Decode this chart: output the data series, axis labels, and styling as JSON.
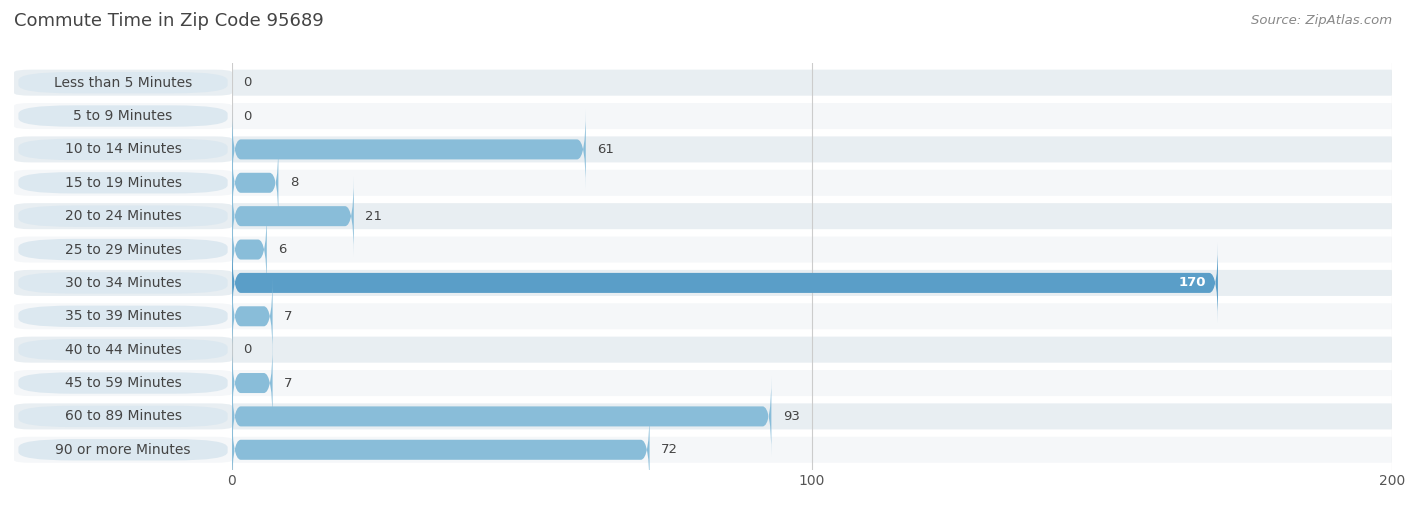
{
  "title": "Commute Time in Zip Code 95689",
  "source": "Source: ZipAtlas.com",
  "categories": [
    "Less than 5 Minutes",
    "5 to 9 Minutes",
    "10 to 14 Minutes",
    "15 to 19 Minutes",
    "20 to 24 Minutes",
    "25 to 29 Minutes",
    "30 to 34 Minutes",
    "35 to 39 Minutes",
    "40 to 44 Minutes",
    "45 to 59 Minutes",
    "60 to 89 Minutes",
    "90 or more Minutes"
  ],
  "values": [
    0,
    0,
    61,
    8,
    21,
    6,
    170,
    7,
    0,
    7,
    93,
    72
  ],
  "bar_color": "#89bdd9",
  "bar_color_highlight": "#5a9ec8",
  "xlim": [
    0,
    200
  ],
  "xticks": [
    0,
    100,
    200
  ],
  "background_color": "#ffffff",
  "row_even_color": "#e8eef2",
  "row_odd_color": "#f5f7f9",
  "label_bg_color": "#dce8f0",
  "title_fontsize": 13,
  "label_fontsize": 10,
  "value_fontsize": 9.5,
  "source_fontsize": 9.5,
  "grid_color": "#cccccc",
  "text_color": "#444444",
  "source_color": "#888888"
}
